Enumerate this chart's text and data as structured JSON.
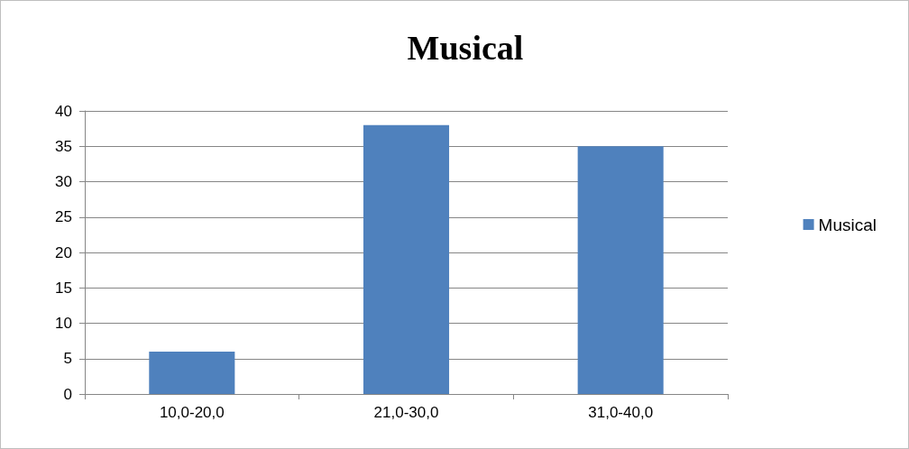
{
  "chart_data": {
    "type": "bar",
    "title": "Musical",
    "categories": [
      "10,0-20,0",
      "21,0-30,0",
      "31,0-40,0"
    ],
    "series": [
      {
        "name": "Musical",
        "color": "#4f81bd",
        "values": [
          6,
          38,
          35
        ]
      }
    ],
    "ylim": [
      0,
      40
    ],
    "yticks": [
      0,
      5,
      10,
      15,
      20,
      25,
      30,
      35,
      40
    ],
    "grid": "y",
    "legend": "right"
  }
}
